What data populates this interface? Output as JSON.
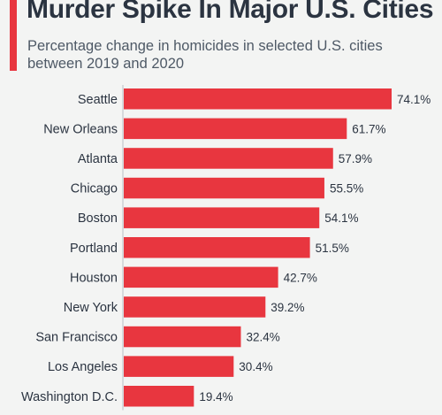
{
  "header": {
    "title": "Murder Spike In Major U.S. Cities",
    "subtitle": "Percentage change in homicides in selected U.S. cities between 2019 and 2020"
  },
  "colors": {
    "accent": "#e8363f",
    "bar": "#e8363f",
    "text": "#2b3441",
    "subtitle": "#4e5966",
    "background": "#f3f4f3"
  },
  "chart_data": {
    "type": "bar",
    "orientation": "horizontal",
    "title": "Murder Spike In Major U.S. Cities",
    "subtitle": "Percentage change in homicides in selected U.S. cities between 2019 and 2020",
    "categories": [
      "Seattle",
      "New Orleans",
      "Atlanta",
      "Chicago",
      "Boston",
      "Portland",
      "Houston",
      "New York",
      "San Francisco",
      "Los Angeles",
      "Washington D.C."
    ],
    "values": [
      74.1,
      61.7,
      57.9,
      55.5,
      54.1,
      51.5,
      42.7,
      39.2,
      32.4,
      30.4,
      19.4
    ],
    "value_labels": [
      "74.1%",
      "61.7%",
      "57.9%",
      "55.5%",
      "54.1%",
      "51.5%",
      "42.7%",
      "39.2%",
      "32.4%",
      "30.4%",
      "19.4%"
    ],
    "unit": "%",
    "xlim": [
      0,
      74.1
    ],
    "grid": false,
    "legend": "none"
  }
}
